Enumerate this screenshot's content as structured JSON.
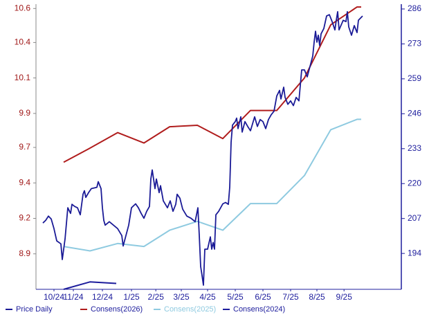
{
  "chart_data": {
    "type": "line",
    "xlim": [
      -0.15,
      13.05
    ],
    "xticks": [
      {
        "value": 0.5,
        "label": "10/24"
      },
      {
        "value": 1.2,
        "label": "11/24"
      },
      {
        "value": 2.25,
        "label": "12/24"
      },
      {
        "value": 3.3,
        "label": "1/25"
      },
      {
        "value": 4.18,
        "label": "2/25"
      },
      {
        "value": 5.1,
        "label": "3/25"
      },
      {
        "value": 6.05,
        "label": "4/25"
      },
      {
        "value": 7.05,
        "label": "5/25"
      },
      {
        "value": 8.05,
        "label": "6/25"
      },
      {
        "value": 9.05,
        "label": "7/25"
      },
      {
        "value": 10.0,
        "label": "8/25"
      },
      {
        "value": 10.98,
        "label": "9/25"
      }
    ],
    "ylim": [
      8.7,
      10.62
    ],
    "yticks": [
      {
        "value": 10.6,
        "label": "10.6"
      },
      {
        "value": 10.37,
        "label": "10.4"
      },
      {
        "value": 10.13,
        "label": "10.1"
      },
      {
        "value": 9.89,
        "label": "9.9"
      },
      {
        "value": 9.66,
        "label": "9.7"
      },
      {
        "value": 9.42,
        "label": "9.4"
      },
      {
        "value": 9.18,
        "label": "9.2"
      },
      {
        "value": 8.94,
        "label": "8.9"
      }
    ],
    "y2lim": [
      180.55,
      286.92
    ],
    "y2ticks": [
      {
        "value": 285.63,
        "label": "286"
      },
      {
        "value": 272.54,
        "label": "273"
      },
      {
        "value": 259.45,
        "label": "259"
      },
      {
        "value": 246.36,
        "label": "246"
      },
      {
        "value": 233.27,
        "label": "233"
      },
      {
        "value": 220.18,
        "label": "220"
      },
      {
        "value": 207.09,
        "label": "207"
      },
      {
        "value": 194,
        "label": "194"
      }
    ],
    "grid": false,
    "series": [
      {
        "name": "Price Daily",
        "color": "#1a1a96",
        "axis": "y2",
        "x": [
          0.1,
          0.2,
          0.3,
          0.4,
          0.5,
          0.6,
          0.75,
          0.8,
          0.9,
          1.0,
          1.1,
          1.15,
          1.25,
          1.35,
          1.45,
          1.55,
          1.6,
          1.65,
          1.75,
          1.85,
          2.05,
          2.1,
          2.2,
          2.25,
          2.3,
          2.35,
          2.5,
          2.65,
          2.8,
          2.95,
          3.0,
          3.1,
          3.2,
          3.3,
          3.45,
          3.55,
          3.65,
          3.75,
          3.85,
          3.95,
          4.0,
          4.05,
          4.15,
          4.2,
          4.3,
          4.35,
          4.45,
          4.6,
          4.7,
          4.8,
          4.9,
          4.95,
          5.05,
          5.15,
          5.3,
          5.45,
          5.6,
          5.7,
          5.75,
          5.8,
          5.85,
          5.9,
          5.95,
          6.05,
          6.15,
          6.2,
          6.25,
          6.3,
          6.35,
          6.45,
          6.6,
          6.7,
          6.8,
          6.85,
          6.9,
          6.95,
          7.05,
          7.1,
          7.15,
          7.25,
          7.3,
          7.4,
          7.5,
          7.6,
          7.75,
          7.85,
          7.95,
          8.05,
          8.15,
          8.25,
          8.35,
          8.45,
          8.55,
          8.65,
          8.7,
          8.8,
          8.85,
          8.95,
          9.05,
          9.15,
          9.25,
          9.35,
          9.45,
          9.55,
          9.65,
          9.75,
          9.85,
          9.9,
          9.95,
          10.0,
          10.05,
          10.1,
          10.15,
          10.25,
          10.35,
          10.45,
          10.55,
          10.65,
          10.7,
          10.75,
          10.8,
          10.95,
          11.05,
          11.1,
          11.15,
          11.25,
          11.35,
          11.45,
          11.5,
          11.65
        ],
        "values": [
          205.4,
          206.4,
          208.0,
          206.9,
          203.3,
          198.7,
          197.6,
          191.7,
          199.4,
          211.1,
          209.0,
          212.4,
          211.6,
          211.1,
          208.5,
          216.2,
          217.5,
          215.0,
          216.8,
          218.3,
          218.8,
          220.9,
          218.3,
          211.1,
          206.4,
          204.6,
          205.9,
          204.6,
          203.3,
          200.7,
          196.8,
          200.7,
          204.6,
          211.1,
          212.6,
          211.1,
          209.0,
          207.2,
          209.8,
          211.6,
          221.9,
          225.3,
          218.3,
          221.9,
          216.8,
          219.4,
          213.7,
          211.1,
          213.7,
          209.8,
          212.4,
          216.2,
          214.7,
          210.6,
          208.0,
          207.2,
          205.9,
          211.1,
          200.7,
          189.1,
          185.7,
          182.1,
          195.6,
          195.6,
          200.2,
          195.6,
          198.1,
          195.6,
          208.5,
          209.8,
          212.6,
          213.1,
          212.4,
          218.8,
          235.7,
          242.1,
          243.4,
          244.7,
          240.8,
          245.2,
          239.5,
          243.4,
          241.6,
          240.0,
          245.2,
          241.6,
          244.2,
          243.4,
          240.8,
          244.2,
          246.0,
          247.3,
          253.0,
          255.1,
          251.9,
          256.3,
          252.5,
          249.9,
          251.2,
          249.4,
          252.5,
          251.2,
          262.8,
          262.8,
          260.2,
          264.1,
          268.0,
          273.2,
          277.3,
          273.2,
          275.8,
          271.9,
          276.3,
          278.3,
          283.0,
          283.5,
          280.9,
          277.8,
          281.4,
          284.6,
          277.8,
          281.4,
          280.9,
          284.6,
          278.9,
          275.8,
          279.4,
          276.8,
          281.4,
          283.0
        ]
      },
      {
        "name": "Consens(2026)",
        "color": "#b01c1c",
        "x": [
          0.85,
          1.75,
          2.8,
          3.75,
          4.68,
          5.68,
          6.6,
          7.6,
          8.55,
          9.55,
          10.5,
          11.45,
          11.6
        ],
        "values": [
          9.56,
          9.65,
          9.76,
          9.69,
          9.8,
          9.81,
          9.72,
          9.91,
          9.91,
          10.13,
          10.49,
          10.61,
          10.61
        ]
      },
      {
        "name": "Consens(2025)",
        "color": "#8ecae0",
        "x": [
          0.85,
          1.8,
          2.8,
          3.75,
          4.68,
          5.68,
          6.6,
          7.6,
          8.55,
          9.55,
          10.5,
          11.45,
          11.6
        ],
        "values": [
          8.99,
          8.96,
          9.01,
          8.99,
          9.1,
          9.16,
          9.1,
          9.28,
          9.28,
          9.47,
          9.78,
          9.85,
          9.85
        ]
      },
      {
        "name": "Consens(2024)",
        "color": "#1c1c9c",
        "x": [
          0.85,
          1.8,
          2.75
        ],
        "values": [
          8.7,
          8.75,
          8.74
        ]
      }
    ]
  }
}
